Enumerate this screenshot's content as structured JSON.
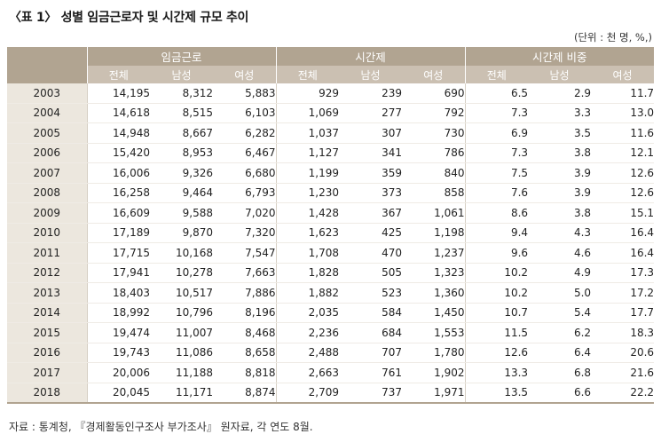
{
  "title": "〈표 1〉 성별 임금근로자 및 시간제 규모 추이",
  "unit": "(단위 : 천 명, %,)",
  "groups": [
    "임금근로",
    "시간제",
    "시간제 비중"
  ],
  "subheaders": [
    "전체",
    "남성",
    "여성",
    "전체",
    "남성",
    "여성",
    "전체",
    "남성",
    "여성"
  ],
  "rows": [
    {
      "year": "2003",
      "cells": [
        "14,195",
        "8,312",
        "5,883",
        "929",
        "239",
        "690",
        "6.5",
        "2.9",
        "11.7"
      ]
    },
    {
      "year": "2004",
      "cells": [
        "14,618",
        "8,515",
        "6,103",
        "1,069",
        "277",
        "792",
        "7.3",
        "3.3",
        "13.0"
      ]
    },
    {
      "year": "2005",
      "cells": [
        "14,948",
        "8,667",
        "6,282",
        "1,037",
        "307",
        "730",
        "6.9",
        "3.5",
        "11.6"
      ]
    },
    {
      "year": "2006",
      "cells": [
        "15,420",
        "8,953",
        "6,467",
        "1,127",
        "341",
        "786",
        "7.3",
        "3.8",
        "12.1"
      ]
    },
    {
      "year": "2007",
      "cells": [
        "16,006",
        "9,326",
        "6,680",
        "1,199",
        "359",
        "840",
        "7.5",
        "3.9",
        "12.6"
      ]
    },
    {
      "year": "2008",
      "cells": [
        "16,258",
        "9,464",
        "6,793",
        "1,230",
        "373",
        "858",
        "7.6",
        "3.9",
        "12.6"
      ]
    },
    {
      "year": "2009",
      "cells": [
        "16,609",
        "9,588",
        "7,020",
        "1,428",
        "367",
        "1,061",
        "8.6",
        "3.8",
        "15.1"
      ]
    },
    {
      "year": "2010",
      "cells": [
        "17,189",
        "9,870",
        "7,320",
        "1,623",
        "425",
        "1,198",
        "9.4",
        "4.3",
        "16.4"
      ]
    },
    {
      "year": "2011",
      "cells": [
        "17,715",
        "10,168",
        "7,547",
        "1,708",
        "470",
        "1,237",
        "9.6",
        "4.6",
        "16.4"
      ]
    },
    {
      "year": "2012",
      "cells": [
        "17,941",
        "10,278",
        "7,663",
        "1,828",
        "505",
        "1,323",
        "10.2",
        "4.9",
        "17.3"
      ]
    },
    {
      "year": "2013",
      "cells": [
        "18,403",
        "10,517",
        "7,886",
        "1,882",
        "523",
        "1,360",
        "10.2",
        "5.0",
        "17.2"
      ]
    },
    {
      "year": "2014",
      "cells": [
        "18,992",
        "10,796",
        "8,196",
        "2,035",
        "584",
        "1,450",
        "10.7",
        "5.4",
        "17.7"
      ]
    },
    {
      "year": "2015",
      "cells": [
        "19,474",
        "11,007",
        "8,468",
        "2,236",
        "684",
        "1,553",
        "11.5",
        "6.2",
        "18.3"
      ]
    },
    {
      "year": "2016",
      "cells": [
        "19,743",
        "11,086",
        "8,658",
        "2,488",
        "707",
        "1,780",
        "12.6",
        "6.4",
        "20.6"
      ]
    },
    {
      "year": "2017",
      "cells": [
        "20,006",
        "11,188",
        "8,818",
        "2,663",
        "761",
        "1,902",
        "13.3",
        "6.8",
        "21.6"
      ]
    },
    {
      "year": "2018",
      "cells": [
        "20,045",
        "11,171",
        "8,874",
        "2,709",
        "737",
        "1,971",
        "13.5",
        "6.6",
        "22.2"
      ]
    }
  ],
  "source": "자료 : 통계청, 『경제활동인구조사 부가조사』 원자료, 각 연도 8월.",
  "colors": {
    "header_dark": "#b1a491",
    "header_light": "#cbc0b2",
    "year_col": "#ece7de"
  }
}
